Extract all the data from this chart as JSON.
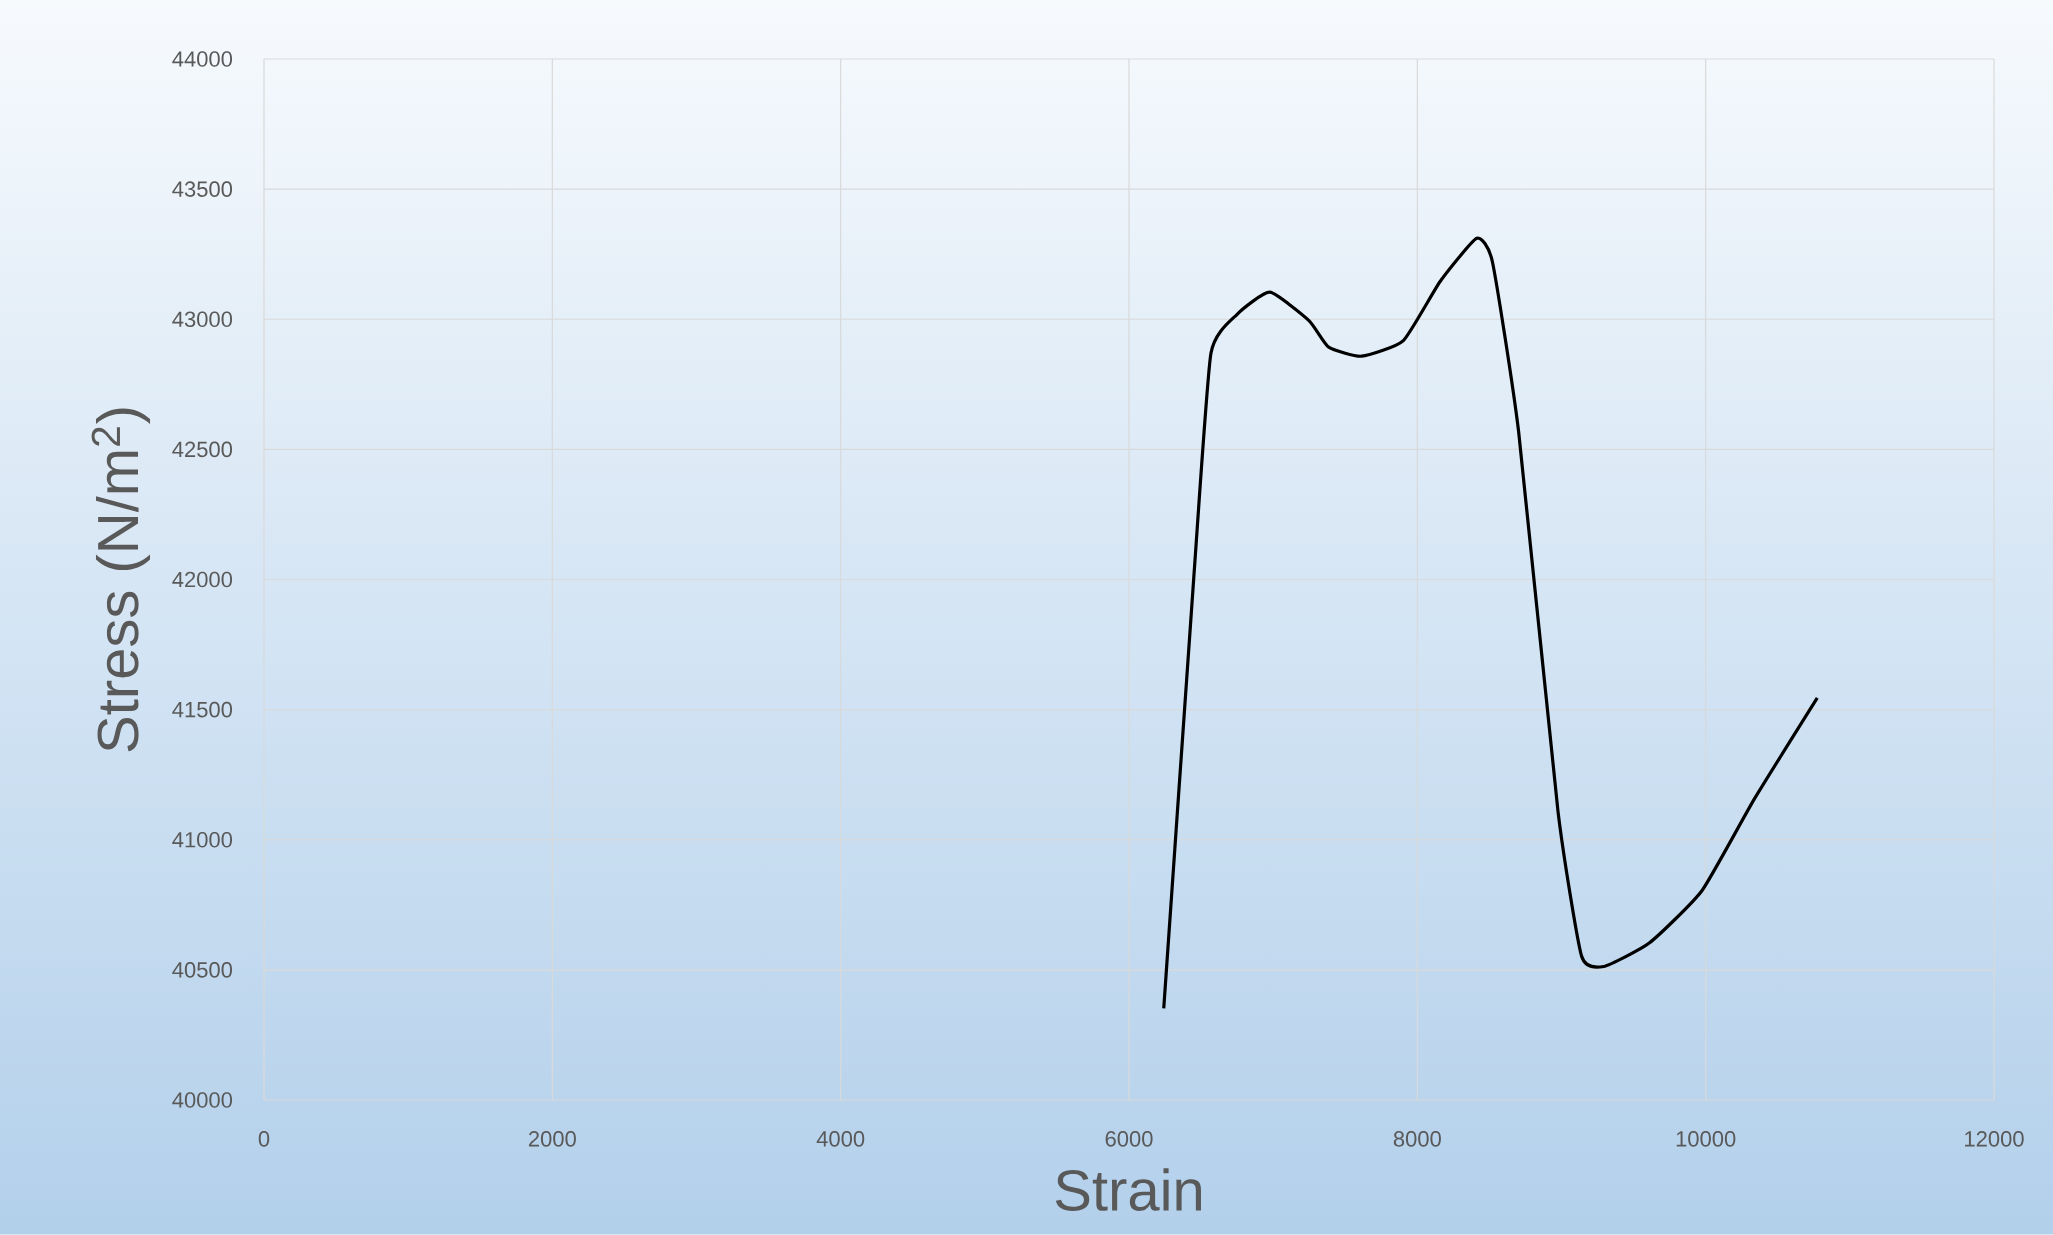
{
  "chart_data": {
    "type": "line",
    "xlabel": "Strain",
    "ylabel": "Stress (N/m$^{2}$)",
    "xlim": [
      0,
      12000
    ],
    "xticks": [
      0,
      2000,
      4000,
      6000,
      8000,
      10000,
      12000
    ],
    "ylim": [
      40000,
      44000
    ],
    "yticks": [
      40000,
      40500,
      41000,
      41500,
      42000,
      42500,
      43000,
      43500,
      44000
    ],
    "grid": true,
    "marker": "none",
    "line_style": "solid",
    "series": [
      {
        "color": "#000000",
        "x": [
          6241,
          6450,
          6568,
          6750,
          6977,
          7250,
          7385,
          7613,
          7903,
          8158,
          8412,
          8521,
          8703,
          8976,
          9139,
          9293,
          9611,
          9975,
          10338,
          10774
        ],
        "values": [
          40352,
          42013,
          42868,
          43019,
          43104,
          42994,
          42893,
          42858,
          42918,
          43145,
          43311,
          43220,
          42566,
          41107,
          40553,
          40513,
          40604,
          40805,
          41157,
          41545
        ]
      }
    ]
  }
}
